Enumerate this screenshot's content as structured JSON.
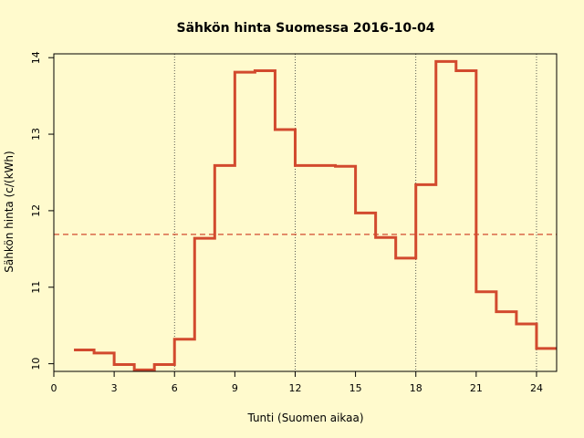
{
  "chart_data": {
    "type": "line",
    "step": true,
    "title": "Sähkön hinta Suomessa 2016-10-04",
    "xlabel": "Tunti (Suomen aikaa)",
    "ylabel": "Sähkön hinta (c/(kWh)",
    "xlim": [
      0,
      25
    ],
    "ylim": [
      9.9,
      14.05
    ],
    "x_ticks": [
      "0",
      "3",
      "6",
      "9",
      "12",
      "15",
      "18",
      "21",
      "24"
    ],
    "y_ticks": [
      "10",
      "11",
      "12",
      "13",
      "14"
    ],
    "vertical_reference_lines": [
      6,
      12,
      18,
      24
    ],
    "mean_line": 11.69,
    "series": [
      {
        "color": "#d24a2e",
        "x": [
          1,
          2,
          3,
          4,
          5,
          6,
          7,
          8,
          9,
          10,
          11,
          12,
          13,
          14,
          15,
          16,
          17,
          18,
          19,
          20,
          21,
          22,
          23,
          24
        ],
        "values": [
          10.18,
          10.14,
          9.99,
          9.92,
          9.99,
          10.32,
          11.64,
          12.59,
          13.81,
          13.83,
          13.06,
          12.59,
          12.59,
          12.58,
          11.97,
          11.65,
          11.38,
          12.34,
          13.95,
          13.83,
          10.94,
          10.68,
          10.52,
          10.2
        ]
      }
    ]
  }
}
